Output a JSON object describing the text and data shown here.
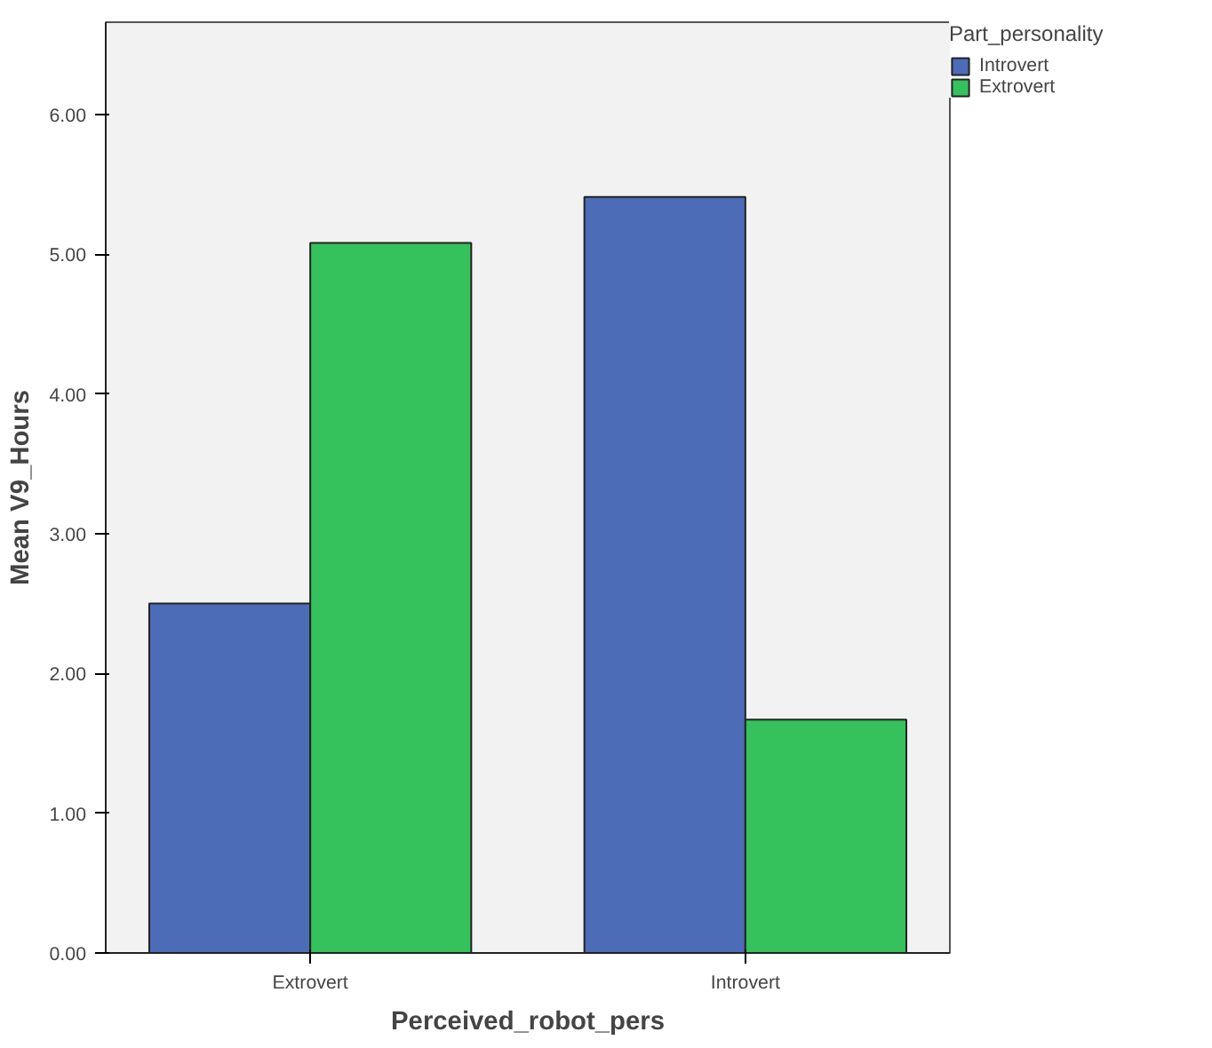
{
  "chart_data": {
    "type": "bar",
    "xlabel": "Perceived_robot_pers",
    "ylabel": "Mean V9_Hours",
    "legend_title": "Part_personality",
    "categories": [
      "Extrovert",
      "Introvert"
    ],
    "series": [
      {
        "name": "Introvert",
        "color": "#4c6cb8",
        "values": [
          2.5,
          5.41
        ]
      },
      {
        "name": "Extrovert",
        "color": "#35c15b",
        "values": [
          5.08,
          1.67
        ]
      }
    ],
    "ylim": [
      0,
      6.66
    ],
    "yticks": [
      {
        "value": 0,
        "label": "0.00"
      },
      {
        "value": 1,
        "label": "1.00"
      },
      {
        "value": 2,
        "label": "2.00"
      },
      {
        "value": 3,
        "label": "3.00"
      },
      {
        "value": 4,
        "label": "4.00"
      },
      {
        "value": 5,
        "label": "5.00"
      },
      {
        "value": 6,
        "label": "6.00"
      }
    ],
    "grid": false,
    "legend": "top right"
  }
}
